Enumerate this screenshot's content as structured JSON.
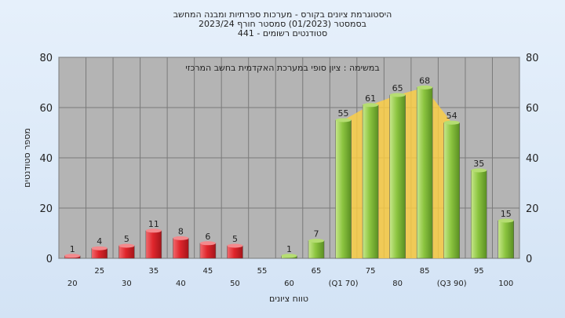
{
  "chart_data": {
    "type": "bar",
    "title_lines": [
      "היסטוגרמת ציונים בקורס - מערכות ספרתיות ומבנה המחשב",
      "בסמסטר  (01/2023)  סמסטר חורף  2023/24",
      "441 - סטודנטים רשומים"
    ],
    "subtitle": "במשימה : ציון סופי במערכת האקדמית בחשב המרכזי",
    "xlabel": "טווח ציונים",
    "ylabel": "מספר סטודנטים",
    "ylim": [
      0,
      80
    ],
    "yticks": [
      0,
      20,
      40,
      60,
      80
    ],
    "grid": true,
    "categories": [
      "20",
      "25",
      "30",
      "35",
      "40",
      "45",
      "50",
      "55",
      "60",
      "65",
      "70",
      "75",
      "80",
      "85",
      "90",
      "95",
      "100"
    ],
    "tick_labels": [
      "20",
      "25",
      "30",
      "35",
      "40",
      "45",
      "50",
      "55",
      "60",
      "65",
      "(Q1 70)",
      "75",
      "80",
      "85",
      "(Q3 90)",
      "95",
      "100"
    ],
    "values": [
      1,
      4,
      5,
      11,
      8,
      6,
      5,
      0,
      1,
      7,
      55,
      61,
      65,
      68,
      54,
      35,
      15
    ],
    "data_labels": [
      "1",
      "4",
      "5",
      "11",
      "8",
      "6",
      "5",
      "",
      "1",
      "7",
      "55",
      "61",
      "65",
      "68",
      "54",
      "35",
      "15"
    ],
    "colors": {
      "fail": "#e0262c",
      "pass": "#8cc540",
      "quartile_band": "#ffd040",
      "plot_bg": "#b4b4b4",
      "grid": "#7a7a7a"
    }
  }
}
